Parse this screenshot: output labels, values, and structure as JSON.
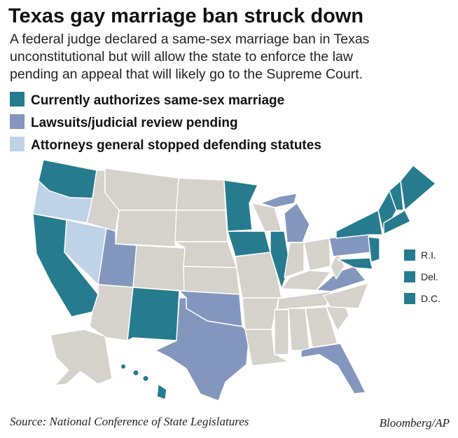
{
  "header": {
    "title": "Texas gay marriage ban struck down",
    "description": [
      "A federal judge declared a same-sex marriage ban in Texas",
      "unconstitutional but will allow the state to enforce the law",
      "pending an appeal that will likely go to the Supreme Court."
    ]
  },
  "legend": [
    {
      "label": "Currently authorizes same-sex marriage",
      "color": "#267b8f"
    },
    {
      "label": "Lawsuits/judicial review pending",
      "color": "#8397be"
    },
    {
      "label": "Attorneys general stopped defending statutes",
      "color": "#bed3e8"
    }
  ],
  "callouts": [
    {
      "label": "R.I.",
      "color": "#267b8f"
    },
    {
      "label": "Del.",
      "color": "#267b8f"
    },
    {
      "label": "D.C.",
      "color": "#267b8f"
    }
  ],
  "source": "Source: National Conference of State Legislatures",
  "credit": "Bloomberg/AP"
}
